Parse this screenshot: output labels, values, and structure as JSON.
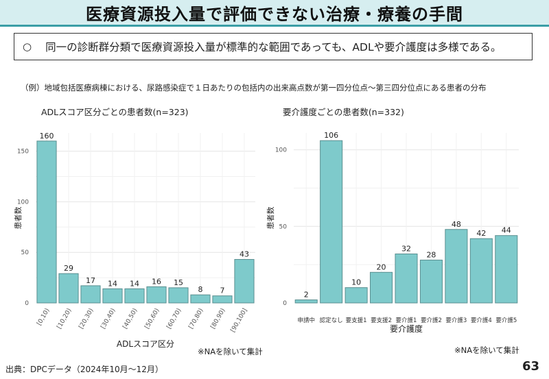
{
  "header": {
    "title": "医療資源投入量で評価できない治療・療養の手間"
  },
  "summary": {
    "bullet": "○",
    "text": "同一の診断群分類で医療資源投入量が標準的な範囲であっても、ADLや要介護度は多様である。"
  },
  "example_text": "（例）地域包括医療病棟における、尿路感染症で１日あたりの包括内の出来高点数が第一四分位点～第三四分位点にある患者の分布",
  "chart_data": [
    {
      "type": "bar",
      "title": "ADLスコア区分ごとの患者数(n=323)",
      "xlabel": "ADLスコア区分",
      "ylabel": "患者数",
      "categories": [
        "[0,10)",
        "[10,20)",
        "[20,30)",
        "[30,40)",
        "[40,50)",
        "[50,60)",
        "[60,70)",
        "[70,80)",
        "[80,90)",
        "[90,100]"
      ],
      "values": [
        160,
        29,
        17,
        14,
        14,
        16,
        15,
        8,
        7,
        43
      ],
      "yticks": [
        0,
        50,
        100,
        150
      ],
      "ylim": [
        0,
        168
      ],
      "note": "※NAを除いて集計",
      "grid": true,
      "bar_color": "#7ecacb"
    },
    {
      "type": "bar",
      "title": "要介護度ごとの患者数(n=332)",
      "xlabel": "要介護度",
      "ylabel": "患者数",
      "categories": [
        "申請中",
        "認定なし",
        "要支援1",
        "要支援2",
        "要介護1",
        "要介護2",
        "要介護3",
        "要介護4",
        "要介護5"
      ],
      "values": [
        2,
        106,
        10,
        20,
        32,
        28,
        48,
        42,
        44
      ],
      "yticks": [
        0,
        50,
        100
      ],
      "ylim": [
        0,
        111
      ],
      "note": "※NAを除いて集計",
      "grid": true,
      "bar_color": "#7ecacb"
    }
  ],
  "footer": {
    "source": "出典：DPCデータ（2024年10月～12月）",
    "page": "63"
  }
}
